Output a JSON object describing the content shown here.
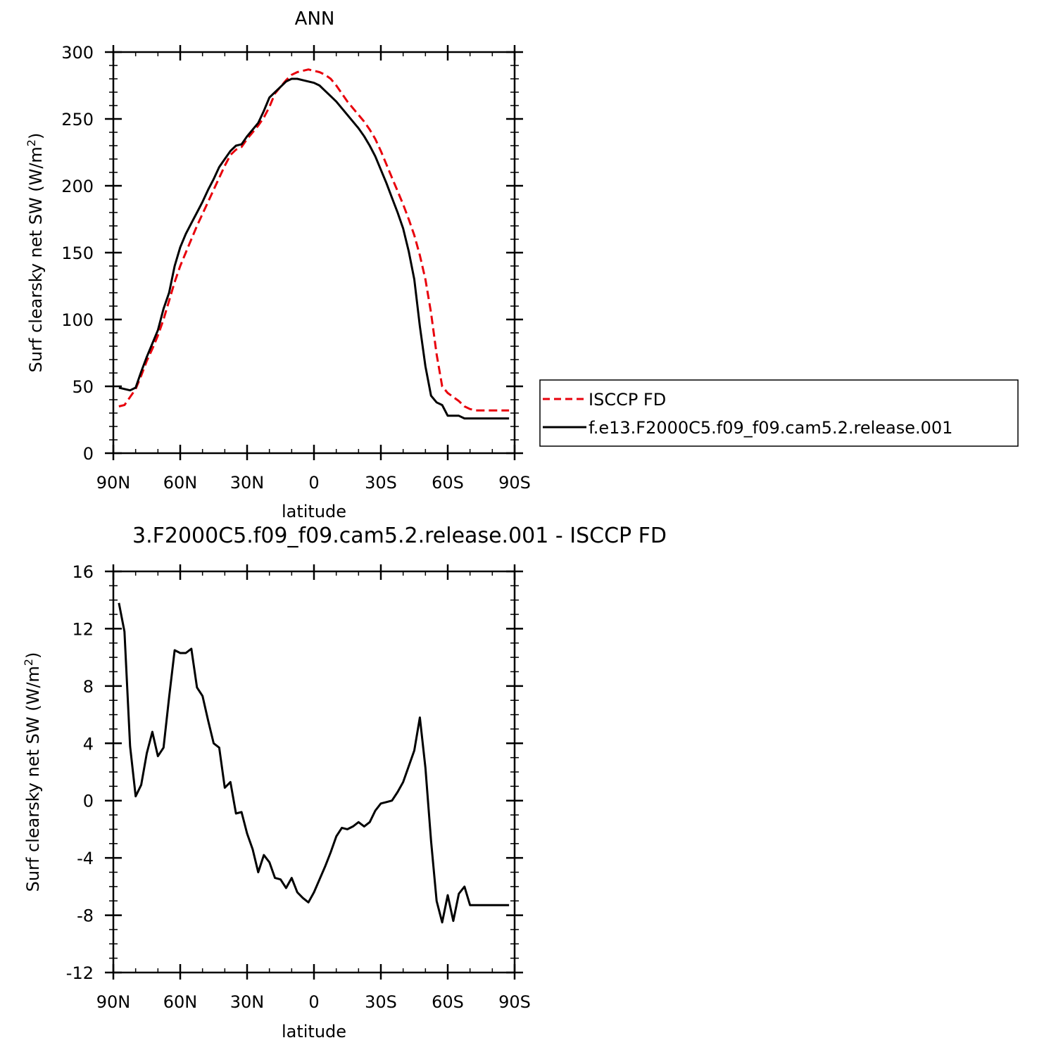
{
  "chart_data": [
    {
      "type": "line",
      "title": "ANN",
      "xlabel": "latitude",
      "ylabel_main": "Surf clearsky net SW (W/m",
      "ylabel_sup": "2",
      "ylabel_close": ")",
      "x_ticks": [
        -90,
        -60,
        -30,
        0,
        30,
        60,
        90
      ],
      "x_tick_labels": [
        "90N",
        "60N",
        "30N",
        "0",
        "30S",
        "60S",
        "90S"
      ],
      "xlim": [
        -90,
        90
      ],
      "ylim": [
        0,
        300
      ],
      "y_ticks": [
        0,
        50,
        100,
        150,
        200,
        250,
        300
      ],
      "y_tick_labels": [
        "0",
        "50",
        "100",
        "150",
        "200",
        "250",
        "300"
      ],
      "y_minor_step": 10,
      "grid": false,
      "legend_position": "right",
      "series": [
        {
          "name": "ISCCP FD",
          "color": "#e8000b",
          "style": "dashed",
          "x": [
            -87.5,
            -85,
            -82.5,
            -80,
            -77.5,
            -75,
            -72.5,
            -70,
            -67.5,
            -65,
            -62.5,
            -60,
            -57.5,
            -55,
            -52.5,
            -50,
            -47.5,
            -45,
            -42.5,
            -40,
            -37.5,
            -35,
            -32.5,
            -30,
            -27.5,
            -25,
            -22.5,
            -20,
            -17.5,
            -15,
            -12.5,
            -10,
            -7.5,
            -5,
            -2.5,
            0,
            2.5,
            5,
            7.5,
            10,
            12.5,
            15,
            17.5,
            20,
            22.5,
            25,
            27.5,
            30,
            32.5,
            35,
            37.5,
            40,
            42.5,
            45,
            47.5,
            50,
            52.5,
            55,
            57.5,
            60,
            62.5,
            65,
            67.5,
            70,
            72.5,
            75,
            77.5,
            80,
            82.5,
            85,
            87.5
          ],
          "y": [
            35,
            36,
            42,
            48,
            58,
            69,
            78,
            88,
            100,
            114,
            128,
            140,
            150,
            160,
            170,
            179,
            188,
            197,
            206,
            215,
            223,
            227,
            229,
            235,
            240,
            245,
            251,
            259,
            269,
            274,
            279,
            283,
            285,
            286,
            287,
            286,
            285,
            283,
            280,
            275,
            269,
            263,
            258,
            253,
            248,
            242,
            235,
            226,
            216,
            206,
            196,
            186,
            175,
            163,
            148,
            130,
            105,
            74,
            50,
            45,
            42,
            39,
            35,
            33,
            32,
            32,
            32,
            32,
            32,
            32,
            32
          ],
          "x_shown_max": 87.5
        },
        {
          "name": "f.e13.F2000C5.f09_f09.cam5.2.release.001",
          "color": "#000000",
          "style": "solid",
          "x": [
            -87.5,
            -85,
            -82.5,
            -80,
            -77.5,
            -75,
            -72.5,
            -70,
            -67.5,
            -65,
            -62.5,
            -60,
            -57.5,
            -55,
            -52.5,
            -50,
            -47.5,
            -45,
            -42.5,
            -40,
            -37.5,
            -35,
            -32.5,
            -30,
            -27.5,
            -25,
            -22.5,
            -20,
            -17.5,
            -15,
            -12.5,
            -10,
            -7.5,
            -5,
            -2.5,
            0,
            2.5,
            5,
            7.5,
            10,
            12.5,
            15,
            17.5,
            20,
            22.5,
            25,
            27.5,
            30,
            32.5,
            35,
            37.5,
            40,
            42.5,
            45,
            47.5,
            50,
            52.5,
            55,
            57.5,
            60,
            62.5,
            65,
            67.5,
            70,
            72.5,
            75,
            77.5,
            80,
            82.5,
            85,
            87.5
          ],
          "y": [
            49,
            48,
            47,
            49,
            61,
            72,
            82,
            92,
            108,
            120,
            140,
            154,
            164,
            172,
            180,
            188,
            197,
            205,
            214,
            220,
            226,
            230,
            231,
            237,
            242,
            247,
            256,
            266,
            270,
            274,
            278,
            280,
            280,
            279,
            278,
            277,
            275,
            271,
            267,
            263,
            258,
            253,
            248,
            243,
            237,
            230,
            222,
            212,
            202,
            191,
            180,
            168,
            151,
            130,
            95,
            65,
            43,
            38,
            36,
            28,
            28,
            28,
            26,
            26,
            26,
            26,
            26,
            26,
            26,
            26,
            26
          ],
          "x_shown_max": 87.5
        }
      ]
    },
    {
      "type": "line",
      "title": "3.F2000C5.f09_f09.cam5.2.release.001 - ISCCP FD",
      "xlabel": "latitude",
      "ylabel_main": "Surf clearsky net SW (W/m",
      "ylabel_sup": "2",
      "ylabel_close": ")",
      "x_ticks": [
        -90,
        -60,
        -30,
        0,
        30,
        60,
        90
      ],
      "x_tick_labels": [
        "90N",
        "60N",
        "30N",
        "0",
        "30S",
        "60S",
        "90S"
      ],
      "xlim": [
        -90,
        90
      ],
      "ylim": [
        -12,
        16
      ],
      "y_ticks": [
        -12,
        -8,
        -4,
        0,
        4,
        8,
        12,
        16
      ],
      "y_tick_labels": [
        "-12",
        "-8",
        "-4",
        "0",
        "4",
        "8",
        "12",
        "16"
      ],
      "y_minor_step": 1,
      "grid": false,
      "series": [
        {
          "color": "#000000",
          "style": "solid",
          "x": [
            -87.5,
            -85,
            -82.5,
            -80,
            -77.5,
            -75,
            -72.5,
            -70,
            -67.5,
            -65,
            -62.5,
            -60,
            -57.5,
            -55,
            -52.5,
            -50,
            -47.5,
            -45,
            -42.5,
            -40,
            -37.5,
            -35,
            -32.5,
            -30,
            -27.5,
            -25,
            -22.5,
            -20,
            -17.5,
            -15,
            -12.5,
            -10,
            -7.5,
            -5,
            -2.5,
            0,
            2.5,
            5,
            7.5,
            10,
            12.5,
            15,
            17.5,
            20,
            22.5,
            25,
            27.5,
            30,
            32.5,
            35,
            37.5,
            40,
            42.5,
            45,
            47.5,
            50,
            52.5,
            55,
            57.5,
            60,
            62.5,
            65,
            67.5,
            70,
            72.5,
            75,
            77.5,
            80,
            82.5,
            85,
            87.5
          ],
          "y": [
            13.8,
            11.8,
            3.8,
            0.3,
            1.1,
            3.3,
            4.8,
            3.1,
            3.7,
            7.2,
            10.5,
            10.3,
            10.3,
            10.6,
            7.9,
            7.3,
            5.6,
            4.0,
            3.7,
            0.9,
            1.3,
            -0.9,
            -0.8,
            -2.3,
            -3.4,
            -5.0,
            -3.8,
            -4.3,
            -5.4,
            -5.5,
            -6.1,
            -5.4,
            -6.4,
            -6.8,
            -7.1,
            -6.4,
            -5.5,
            -4.6,
            -3.6,
            -2.5,
            -1.9,
            -2.0,
            -1.8,
            -1.5,
            -1.8,
            -1.5,
            -0.7,
            -0.2,
            -0.1,
            0.0,
            0.6,
            1.3,
            2.4,
            3.5,
            5.8,
            2.3,
            -2.8,
            -7.0,
            -8.5,
            -6.6,
            -8.4,
            -6.5,
            -6.0,
            -7.3,
            -7.3,
            -7.3,
            -7.3,
            -7.3,
            -7.3,
            -7.3,
            -7.3
          ],
          "x_shown_max": 87.5
        }
      ]
    }
  ]
}
